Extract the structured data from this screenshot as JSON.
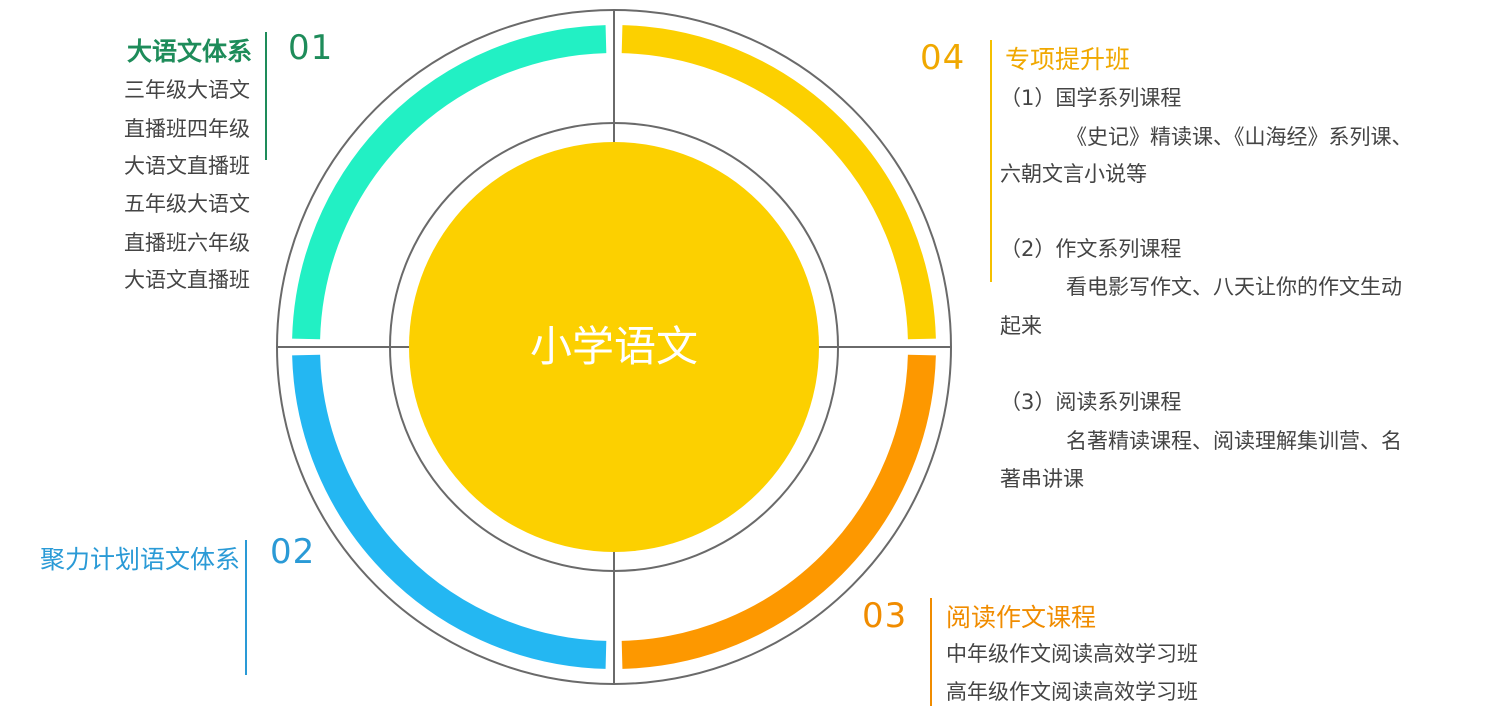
{
  "center": {
    "label": "小学语文"
  },
  "colors": {
    "teal": "#22f0c4",
    "yellow": "#fcd000",
    "orange": "#fd9800",
    "blue": "#24b7f2",
    "green_text": "#1e8c5a",
    "blue_text": "#2a9ad6",
    "orange_text": "#f08c00",
    "yellow_text": "#f0a800"
  },
  "sections": [
    {
      "number": "01",
      "title": "大语文体系",
      "items": [
        "三年级大语文",
        "直播班四年级",
        "大语文直播班",
        "五年级大语文",
        "直播班六年级",
        "大语文直播班"
      ]
    },
    {
      "number": "02",
      "title": "聚力计划语文体系",
      "items": []
    },
    {
      "number": "03",
      "title": "阅读作文课程",
      "items": [
        "中年级作文阅读高效学习班",
        "高年级作文阅读高效学习班"
      ]
    },
    {
      "number": "04",
      "title": "专项提升班",
      "groups": [
        {
          "heading": "（1）国学系列课程",
          "lines": [
            "《史记》精读课、《山海经》系列课、",
            "六朝文言小说等"
          ]
        },
        {
          "heading": "（2）作文系列课程",
          "lines": [
            "看电影写作文、八天让你的作文生动",
            "起来"
          ]
        },
        {
          "heading": "（3）阅读系列课程",
          "lines": [
            "名著精读课程、阅读理解集训营、名",
            "著串讲课"
          ]
        }
      ]
    }
  ]
}
